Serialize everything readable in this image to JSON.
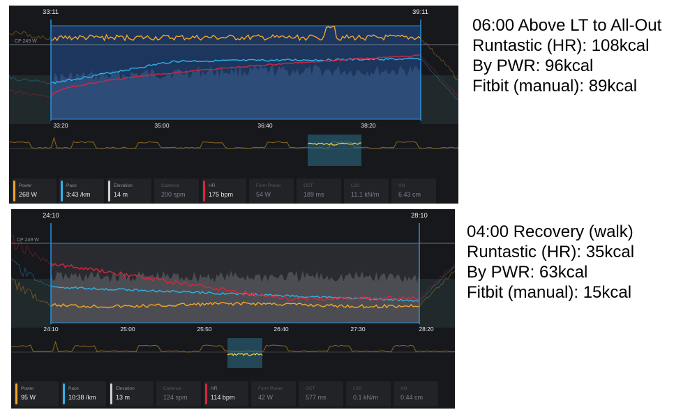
{
  "colors": {
    "power": "#f5a623",
    "pace": "#2fb3e8",
    "elevation": "#d0d0d0",
    "hr": "#d8263c",
    "selection": "#2f8fd8",
    "background": "#17181c"
  },
  "panels": [
    {
      "window_start": "33:11",
      "window_end": "39:11",
      "cp_label": "CP 249 W",
      "ticks": [
        "33:20",
        "35:00",
        "36:40",
        "38:20"
      ],
      "stats": [
        {
          "label": "Power",
          "value": "268 W",
          "color": "power"
        },
        {
          "label": "Pace",
          "value": "3:43 /km",
          "color": "pace"
        },
        {
          "label": "Elevation",
          "value": "14 m",
          "color": "elevation"
        },
        {
          "label": "Cadence",
          "value": "200 spm",
          "color": ""
        },
        {
          "label": "HR",
          "value": "175 bpm",
          "color": "hr"
        },
        {
          "label": "Form Power",
          "value": "54 W",
          "color": ""
        },
        {
          "label": "GCT",
          "value": "189 ms",
          "color": ""
        },
        {
          "label": "LSS",
          "value": "11.1 kN/m",
          "color": ""
        },
        {
          "label": "VO",
          "value": "6.43 cm",
          "color": ""
        }
      ],
      "note": [
        "06:00 Above LT to All-Out",
        "Runtastic (HR): 108kcal",
        "By PWR: 96kcal",
        "Fitbit (manual): 89kcal"
      ]
    },
    {
      "window_start": "24:10",
      "window_end": "28:10",
      "cp_label": "CP 249 W",
      "ticks": [
        "24:10",
        "25:00",
        "25:50",
        "26:40",
        "27:30",
        "28:20"
      ],
      "stats": [
        {
          "label": "Power",
          "value": "95 W",
          "color": "power"
        },
        {
          "label": "Pace",
          "value": "10:38 /km",
          "color": "pace"
        },
        {
          "label": "Elevation",
          "value": "13 m",
          "color": "elevation"
        },
        {
          "label": "Cadence",
          "value": "124 spm",
          "color": ""
        },
        {
          "label": "HR",
          "value": "114 bpm",
          "color": "hr"
        },
        {
          "label": "Form Power",
          "value": "42 W",
          "color": ""
        },
        {
          "label": "GCT",
          "value": "577 ms",
          "color": ""
        },
        {
          "label": "LSS",
          "value": "0.1 kN/m",
          "color": ""
        },
        {
          "label": "VO",
          "value": "0.44 cm",
          "color": ""
        }
      ],
      "note": [
        "04:00 Recovery (walk)",
        "Runtastic (HR): 35kcal",
        "By PWR: 63kcal",
        "Fitbit (manual): 15kcal"
      ]
    }
  ],
  "chart_data": [
    {
      "type": "line",
      "title": "",
      "x": [
        "33:20",
        "35:00",
        "36:40",
        "38:20"
      ],
      "series": [
        {
          "name": "Power",
          "values": [
            265,
            272,
            268,
            270
          ]
        },
        {
          "name": "Pace",
          "values": [
            "3:55 /km",
            "3:47 /km",
            "3:43 /km",
            "3:43 /km"
          ]
        },
        {
          "name": "HR",
          "values": [
            150,
            168,
            172,
            176
          ]
        }
      ],
      "reference_line": "CP 249 W",
      "selection": [
        "33:11",
        "39:11"
      ]
    },
    {
      "type": "line",
      "title": "",
      "x": [
        "24:10",
        "25:00",
        "25:50",
        "26:40",
        "27:30",
        "28:20"
      ],
      "series": [
        {
          "name": "Power",
          "values": [
            100,
            96,
            97,
            92,
            90,
            96
          ]
        },
        {
          "name": "Pace",
          "values": [
            "9:40 /km",
            "10:15 /km",
            "10:25 /km",
            "10:35 /km",
            "10:45 /km",
            "10:38 /km"
          ]
        },
        {
          "name": "HR",
          "values": [
            150,
            130,
            124,
            118,
            114,
            114
          ]
        }
      ],
      "reference_line": "CP 249 W",
      "selection": [
        "24:10",
        "28:10"
      ]
    }
  ]
}
